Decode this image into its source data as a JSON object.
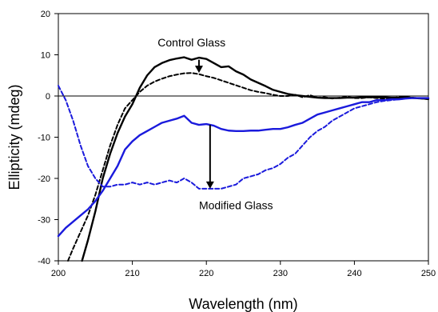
{
  "chart_data": {
    "type": "line",
    "title": "",
    "xlabel": "Wavelength  (nm)",
    "ylabel": "Ellipticity  (mdeg)",
    "xlim": [
      200,
      250
    ],
    "ylim": [
      -40,
      20
    ],
    "xticks": [
      200,
      210,
      220,
      230,
      240,
      250
    ],
    "yticks": [
      20,
      10,
      0,
      -10,
      -20,
      -30,
      -40
    ],
    "xtick_labels": [
      "200",
      "210",
      "220",
      "230",
      "240",
      "250"
    ],
    "ytick_labels": [
      "20",
      "10",
      "0",
      "-10",
      "-20",
      "-30",
      "-40"
    ],
    "grid": false,
    "legend": "none",
    "series": [
      {
        "color": "#000000",
        "style": "solid",
        "x": [
          203.2,
          204,
          205,
          206,
          207,
          208,
          209,
          210,
          211,
          212,
          213,
          214,
          215,
          216,
          217,
          218,
          219,
          220,
          221,
          222,
          223,
          224,
          225,
          226,
          227,
          228,
          229,
          230,
          231,
          232,
          233,
          234,
          235,
          236,
          237,
          238,
          239,
          240,
          241,
          242,
          243,
          244,
          245,
          246,
          247,
          248,
          249,
          250
        ],
        "y": [
          -40,
          -35,
          -28,
          -20,
          -14,
          -9,
          -5,
          -2,
          2,
          5,
          7,
          8,
          8.7,
          9.1,
          9.4,
          8.8,
          9.3,
          9,
          8,
          7,
          7.2,
          6,
          5.2,
          4,
          3.2,
          2.4,
          1.5,
          1,
          0.5,
          0.2,
          0,
          -0.2,
          -0.4,
          -0.5,
          -0.5,
          -0.5,
          -0.4,
          -0.4,
          -0.3,
          -0.3,
          -0.3,
          -0.3,
          -0.4,
          -0.4,
          -0.3,
          -0.5,
          -0.6,
          -0.7
        ]
      },
      {
        "color": "#000000",
        "style": "dashed",
        "x": [
          201.3,
          202,
          203,
          204,
          205,
          206,
          207,
          208,
          209,
          210,
          211,
          212,
          213,
          214,
          215,
          216,
          217,
          218,
          219,
          220,
          221,
          222,
          223,
          224,
          225,
          226,
          227,
          228,
          229,
          230,
          231,
          232,
          233,
          234,
          235,
          236,
          237,
          238,
          239,
          240,
          241,
          242,
          243,
          244,
          245,
          246,
          247,
          248,
          249,
          250
        ],
        "y": [
          -40,
          -37,
          -33,
          -29,
          -24,
          -18,
          -12,
          -7,
          -3,
          -1,
          1,
          2.5,
          3.5,
          4.2,
          4.8,
          5.2,
          5.5,
          5.6,
          5.3,
          4.8,
          4.4,
          3.8,
          3.2,
          2.6,
          2,
          1.4,
          1,
          0.7,
          0.3,
          0,
          0,
          0.3,
          -0.3,
          0.2,
          -0.4,
          -0.3,
          -0.6,
          -0.4,
          -0.2,
          -0.5,
          -0.5,
          -0.3,
          -0.5,
          -0.6,
          -0.5,
          -0.3,
          -0.3,
          -0.4,
          -0.6,
          -0.8
        ]
      },
      {
        "color": "#1a1adc",
        "style": "solid",
        "x": [
          200,
          201,
          202,
          203,
          204,
          205,
          206,
          207,
          208,
          209,
          210,
          211,
          212,
          213,
          214,
          215,
          216,
          217,
          218,
          219,
          220,
          221,
          222,
          223,
          224,
          225,
          226,
          227,
          228,
          229,
          230,
          231,
          232,
          233,
          234,
          235,
          236,
          237,
          238,
          239,
          240,
          241,
          242,
          243,
          244,
          245,
          246,
          247,
          248,
          249,
          250
        ],
        "y": [
          -34,
          -32,
          -30.5,
          -29,
          -27.5,
          -25.5,
          -23,
          -20,
          -17,
          -13,
          -11,
          -9.5,
          -8.5,
          -7.5,
          -6.5,
          -6,
          -5.5,
          -4.8,
          -6.5,
          -7,
          -6.8,
          -7.2,
          -8,
          -8.4,
          -8.5,
          -8.5,
          -8.4,
          -8.4,
          -8.2,
          -8,
          -8,
          -7.6,
          -7,
          -6.5,
          -5.5,
          -4.5,
          -4,
          -3.5,
          -3,
          -2.5,
          -2,
          -1.5,
          -1.5,
          -1,
          -1,
          -0.8,
          -0.8,
          -0.6,
          -0.5,
          -0.5,
          -0.5
        ]
      },
      {
        "color": "#1a1adc",
        "style": "dashed",
        "x": [
          200,
          201,
          202,
          203,
          204,
          205,
          206,
          207,
          208,
          209,
          210,
          211,
          212,
          213,
          214,
          215,
          216,
          217,
          218,
          219,
          220,
          221,
          222,
          223,
          224,
          225,
          226,
          227,
          228,
          229,
          230,
          231,
          232,
          233,
          234,
          235,
          236,
          237,
          238,
          239,
          240,
          241,
          242,
          243,
          244,
          245,
          246,
          247,
          248,
          249,
          250
        ],
        "y": [
          2.5,
          -1,
          -6,
          -12,
          -17,
          -20,
          -22,
          -22,
          -21.5,
          -21.5,
          -21,
          -21.5,
          -21,
          -21.5,
          -21,
          -20.5,
          -21,
          -20,
          -21,
          -22.5,
          -22.5,
          -22.5,
          -22.5,
          -22,
          -21.5,
          -20,
          -19.5,
          -19,
          -18,
          -17.5,
          -16.5,
          -15,
          -14,
          -12,
          -10,
          -8.5,
          -7.5,
          -6,
          -5,
          -4,
          -3,
          -2.5,
          -2,
          -1.5,
          -1.2,
          -1,
          -0.8,
          -0.6,
          -0.5,
          -0.5,
          -0.5
        ]
      }
    ],
    "annotations": [
      {
        "text": "Control Glass",
        "x": 218,
        "y": 12
      },
      {
        "text": "Modified Glass",
        "x": 224,
        "y": -27.5
      }
    ],
    "arrows": [
      {
        "x": 219,
        "y_from": 8.8,
        "y_to": 5.6
      },
      {
        "x": 220.5,
        "y_from": -7,
        "y_to": -22.5
      }
    ],
    "zero_line": true
  }
}
